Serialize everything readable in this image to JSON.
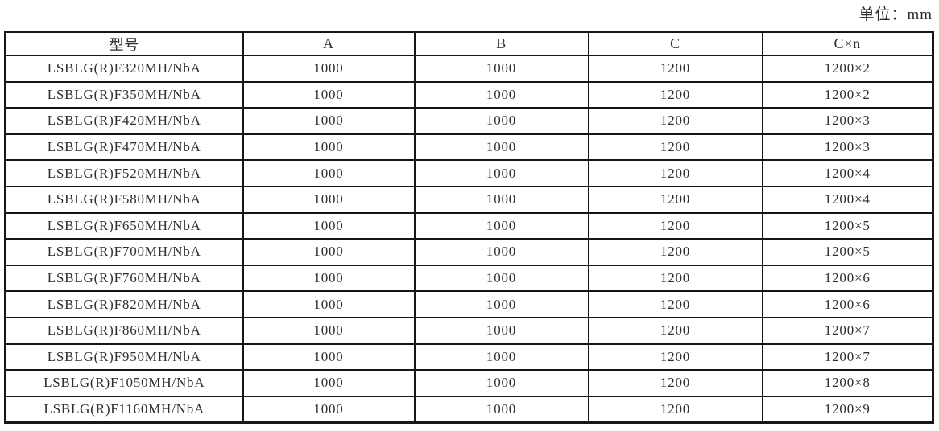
{
  "unit_label": "单位：mm",
  "colors": {
    "border": "#161616",
    "text": "#2e2e2e",
    "background": "#ffffff"
  },
  "table": {
    "headers": [
      "型号",
      "A",
      "B",
      "C",
      "C×n"
    ],
    "rows": [
      [
        "LSBLG(R)F320MH/NbA",
        "1000",
        "1000",
        "1200",
        "1200×2"
      ],
      [
        "LSBLG(R)F350MH/NbA",
        "1000",
        "1000",
        "1200",
        "1200×2"
      ],
      [
        "LSBLG(R)F420MH/NbA",
        "1000",
        "1000",
        "1200",
        "1200×3"
      ],
      [
        "LSBLG(R)F470MH/NbA",
        "1000",
        "1000",
        "1200",
        "1200×3"
      ],
      [
        "LSBLG(R)F520MH/NbA",
        "1000",
        "1000",
        "1200",
        "1200×4"
      ],
      [
        "LSBLG(R)F580MH/NbA",
        "1000",
        "1000",
        "1200",
        "1200×4"
      ],
      [
        "LSBLG(R)F650MH/NbA",
        "1000",
        "1000",
        "1200",
        "1200×5"
      ],
      [
        "LSBLG(R)F700MH/NbA",
        "1000",
        "1000",
        "1200",
        "1200×5"
      ],
      [
        "LSBLG(R)F760MH/NbA",
        "1000",
        "1000",
        "1200",
        "1200×6"
      ],
      [
        "LSBLG(R)F820MH/NbA",
        "1000",
        "1000",
        "1200",
        "1200×6"
      ],
      [
        "LSBLG(R)F860MH/NbA",
        "1000",
        "1000",
        "1200",
        "1200×7"
      ],
      [
        "LSBLG(R)F950MH/NbA",
        "1000",
        "1000",
        "1200",
        "1200×7"
      ],
      [
        "LSBLG(R)F1050MH/NbA",
        "1000",
        "1000",
        "1200",
        "1200×8"
      ],
      [
        "LSBLG(R)F1160MH/NbA",
        "1000",
        "1000",
        "1200",
        "1200×9"
      ]
    ]
  }
}
